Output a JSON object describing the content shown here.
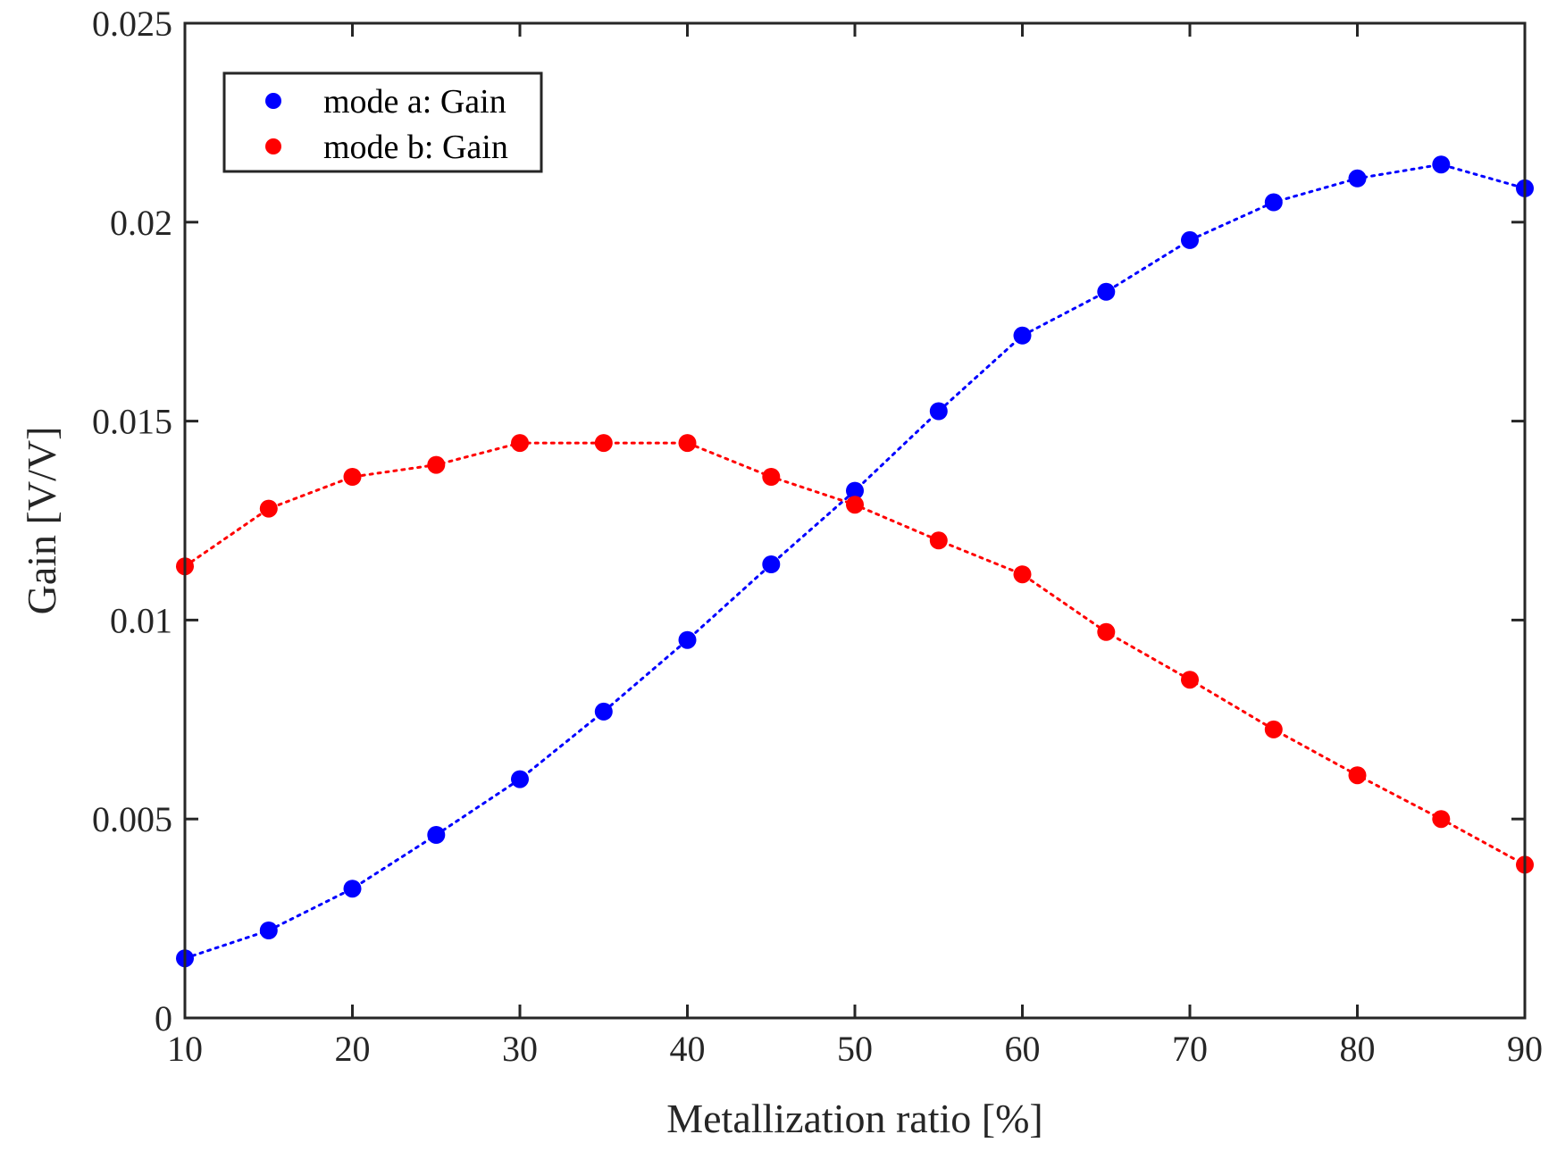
{
  "chart_data": {
    "type": "line",
    "title": "",
    "xlabel": "Metallization ratio [%]",
    "ylabel": "Gain [V/V]",
    "xlim": [
      10,
      90
    ],
    "ylim": [
      0,
      0.025
    ],
    "grid": false,
    "legend_position": "top-left",
    "x_ticks": [
      10,
      20,
      30,
      40,
      50,
      60,
      70,
      80,
      90
    ],
    "x_tick_labels": [
      "10",
      "20",
      "30",
      "40",
      "50",
      "60",
      "70",
      "80",
      "90"
    ],
    "y_ticks": [
      0,
      0.005,
      0.01,
      0.015,
      0.02,
      0.025
    ],
    "y_tick_labels": [
      "0",
      "0.005",
      "0.01",
      "0.015",
      "0.02",
      "0.025"
    ],
    "x": [
      10,
      15,
      20,
      25,
      30,
      35,
      40,
      45,
      50,
      55,
      60,
      65,
      70,
      75,
      80,
      85,
      90
    ],
    "series": [
      {
        "name": "mode a: Gain",
        "color": "#0000ff",
        "values": [
          0.0015,
          0.0022,
          0.00325,
          0.0046,
          0.006,
          0.0077,
          0.0095,
          0.0114,
          0.01325,
          0.01525,
          0.01715,
          0.01825,
          0.01955,
          0.0205,
          0.0211,
          0.02145,
          0.02085
        ]
      },
      {
        "name": "mode b: Gain",
        "color": "#ff0000",
        "values": [
          0.01135,
          0.0128,
          0.0136,
          0.0139,
          0.01445,
          0.01445,
          0.01445,
          0.0136,
          0.0129,
          0.012,
          0.01115,
          0.0097,
          0.0085,
          0.00725,
          0.0061,
          0.005,
          0.00385
        ]
      }
    ]
  }
}
